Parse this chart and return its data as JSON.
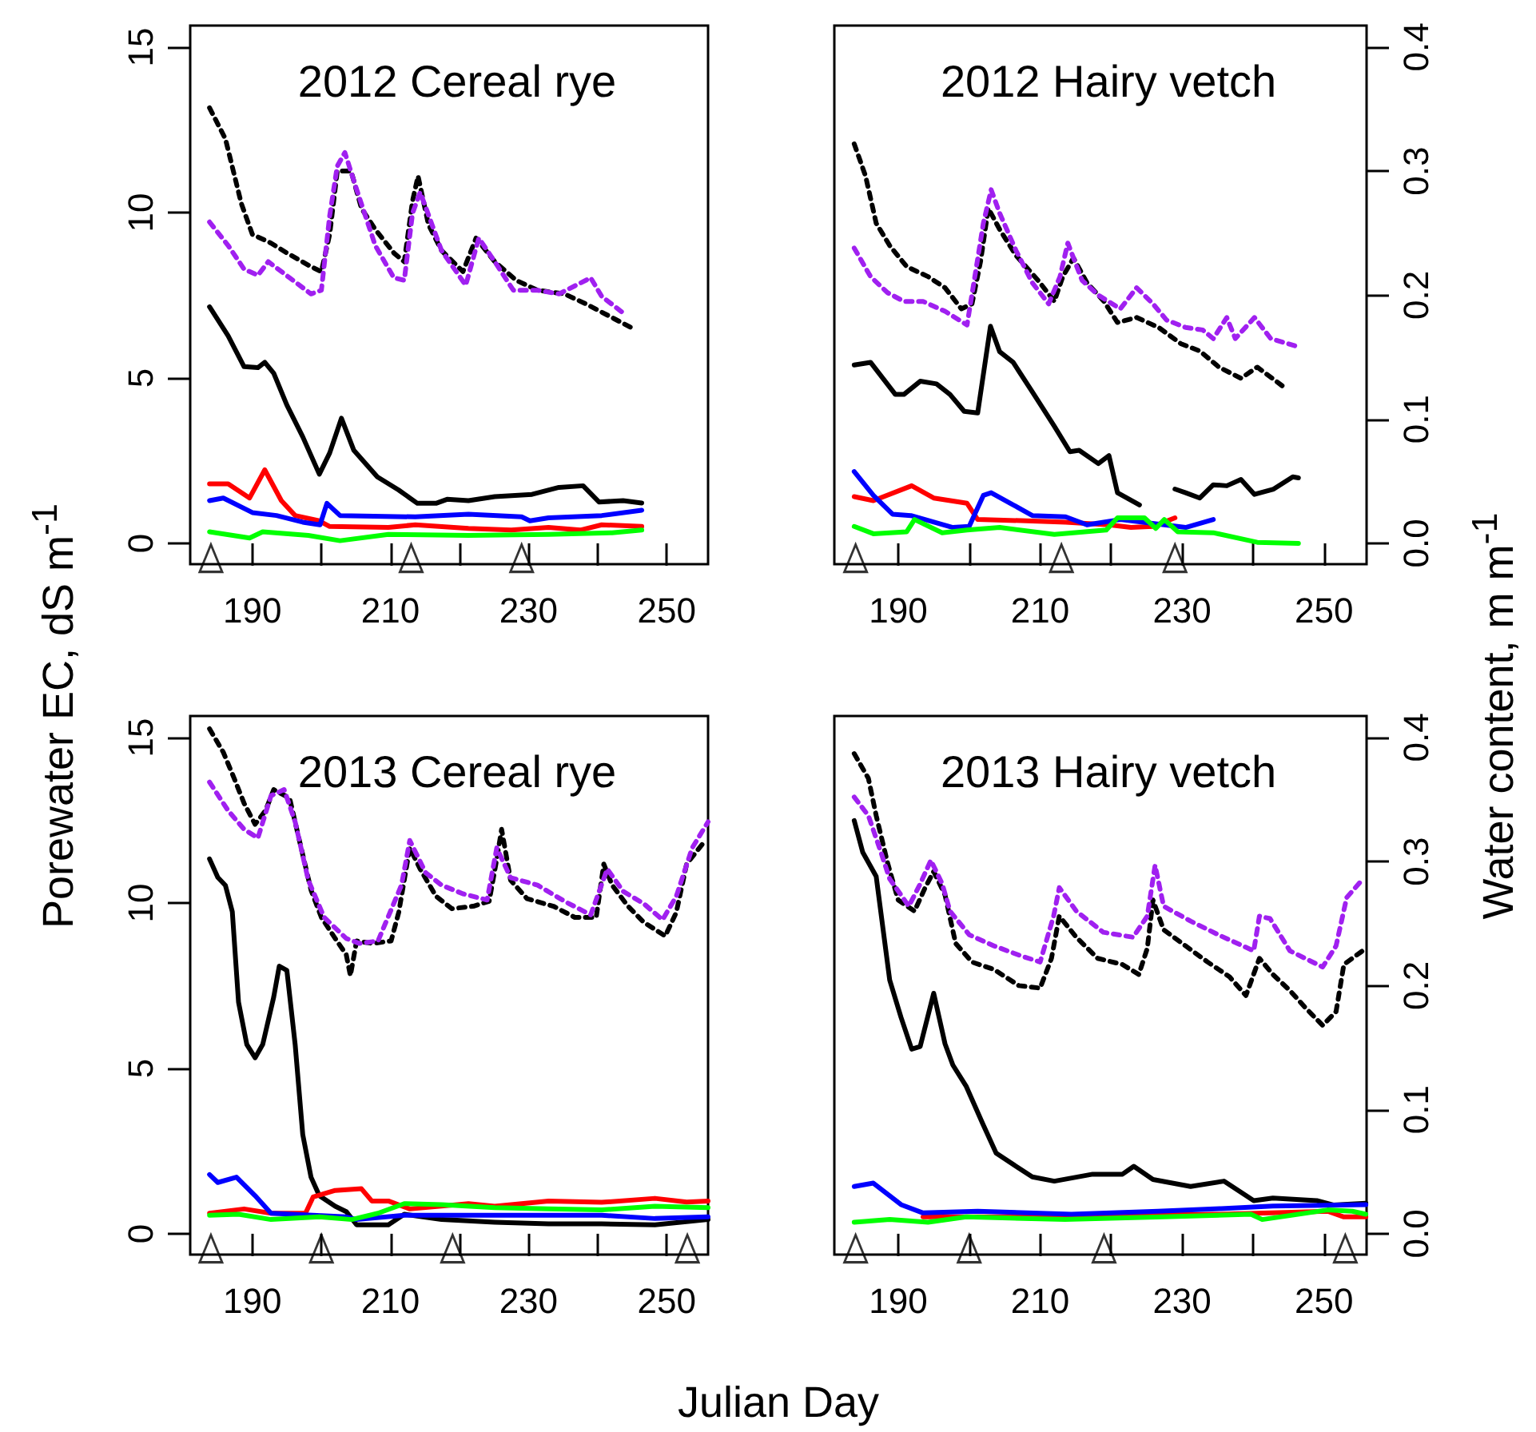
{
  "chart_data": [
    {
      "type": "line",
      "title": "2012 Cereal rye",
      "ylabel": "Porewater EC, dS m$^{-1}$",
      "xlim": [
        181,
        256
      ],
      "xticks": [
        190,
        {
          "value": 200,
          "label": null
        },
        210,
        {
          "value": 220,
          "label": null
        },
        230,
        {
          "value": 240,
          "label": null
        },
        250
      ],
      "ylim": [
        -0.63,
        15.65
      ],
      "yticks": [
        0,
        5,
        10,
        15
      ],
      "y2lim": [
        -0.0168,
        0.4173
      ],
      "tick_labels": [
        "x",
        "y"
      ],
      "series": [
        {
          "type": "line",
          "color": "#000000",
          "line_style": "solid",
          "x": [
            183.8,
            186.5,
            188.8,
            190.8,
            191.8,
            193.1,
            195.0,
            197.3,
            199.7,
            201.2,
            202.9,
            204.7,
            208.1,
            211.2,
            213.9,
            216.6,
            218.2,
            221.3,
            225.1,
            230.5,
            234.4,
            237.9,
            240.2,
            243.7,
            246.4
          ],
          "values": [
            7.15,
            6.27,
            5.34,
            5.31,
            5.47,
            5.14,
            4.18,
            3.22,
            2.09,
            2.73,
            3.78,
            2.81,
            2.01,
            1.61,
            1.21,
            1.21,
            1.33,
            1.29,
            1.41,
            1.48,
            1.69,
            1.74,
            1.25,
            1.29,
            1.22
          ]
        },
        {
          "type": "line",
          "color": "#ff0000",
          "line_style": "solid",
          "x": [
            183.8,
            186.5,
            189.6,
            191.8,
            194.2,
            196.2,
            199.7,
            201.2,
            209.7,
            213.6,
            221.3,
            227.5,
            232.9,
            237.5,
            240.6,
            246.4
          ],
          "values": [
            1.8,
            1.8,
            1.37,
            2.22,
            1.29,
            0.84,
            0.68,
            0.51,
            0.48,
            0.56,
            0.45,
            0.4,
            0.48,
            0.4,
            0.56,
            0.51
          ]
        },
        {
          "type": "line",
          "color": "#0000ff",
          "line_style": "solid",
          "x": [
            183.8,
            185.8,
            190.0,
            193.5,
            197.3,
            199.8,
            200.8,
            202.7,
            213.6,
            221.3,
            229.0,
            230.2,
            232.9,
            240.6,
            246.4
          ],
          "values": [
            1.29,
            1.37,
            0.93,
            0.84,
            0.64,
            0.56,
            1.21,
            0.84,
            0.8,
            0.88,
            0.8,
            0.68,
            0.77,
            0.84,
            1.0
          ]
        },
        {
          "type": "line",
          "color": "#00ff00",
          "line_style": "solid",
          "x": [
            183.8,
            189.6,
            191.5,
            198.1,
            202.7,
            209.7,
            221.3,
            232.9,
            242.1,
            246.4
          ],
          "values": [
            0.35,
            0.16,
            0.35,
            0.24,
            0.08,
            0.27,
            0.24,
            0.27,
            0.32,
            0.4
          ]
        },
        {
          "type": "line",
          "axis": "y2",
          "color": "#000000",
          "line_style": "dashed",
          "x": [
            183.8,
            186.1,
            188.4,
            190.0,
            192.7,
            195.0,
            198.5,
            200.0,
            201.2,
            202.3,
            204.3,
            205.8,
            207.8,
            210.5,
            212.0,
            213.2,
            214.0,
            215.5,
            217.4,
            220.5,
            222.4,
            225.1,
            228.2,
            231.3,
            235.2,
            238.3,
            241.4,
            244.8
          ],
          "values": [
            0.351,
            0.326,
            0.274,
            0.249,
            0.242,
            0.234,
            0.223,
            0.219,
            0.249,
            0.3,
            0.3,
            0.27,
            0.253,
            0.234,
            0.227,
            0.276,
            0.296,
            0.257,
            0.236,
            0.219,
            0.246,
            0.227,
            0.212,
            0.204,
            0.201,
            0.193,
            0.184,
            0.174
          ]
        },
        {
          "type": "line",
          "axis": "y2",
          "color": "#a020f0",
          "line_style": "dashed",
          "x": [
            183.8,
            186.5,
            188.8,
            190.8,
            192.3,
            195.4,
            198.5,
            200.0,
            201.2,
            202.3,
            203.4,
            205.0,
            207.8,
            210.5,
            212.0,
            213.2,
            214.3,
            217.4,
            220.9,
            222.8,
            225.1,
            227.8,
            231.3,
            234.4,
            239.0,
            240.6,
            244.1
          ],
          "values": [
            0.259,
            0.24,
            0.221,
            0.216,
            0.227,
            0.214,
            0.201,
            0.204,
            0.264,
            0.304,
            0.315,
            0.287,
            0.24,
            0.214,
            0.212,
            0.266,
            0.283,
            0.236,
            0.208,
            0.246,
            0.227,
            0.204,
            0.204,
            0.201,
            0.214,
            0.199,
            0.184
          ]
        },
        {
          "type": "scatter",
          "color": "#000000",
          "marker": "triangle",
          "x": [
            184,
            213,
            229
          ],
          "values": [
            -0.45,
            -0.45,
            -0.45
          ]
        }
      ]
    },
    {
      "type": "line",
      "title": "2012 Hairy vetch",
      "y2label": "Water content, m m$^{-1}$",
      "xlim": [
        181,
        256
      ],
      "xticks": [
        190,
        {
          "value": 200,
          "label": null
        },
        210,
        {
          "value": 220,
          "label": null
        },
        230,
        {
          "value": 240,
          "label": null
        },
        250
      ],
      "ylim": [
        -0.63,
        15.65
      ],
      "y2lim": [
        -0.0168,
        0.4173
      ],
      "y2ticks": [
        {
          "value": 0,
          "label": "0.0"
        },
        0.1,
        0.2,
        0.3,
        0.4
      ],
      "tick_labels": [
        "x",
        "y2"
      ],
      "series": [
        {
          "type": "line",
          "color": "#000000",
          "line_style": "solid",
          "x": [
            183.8,
            186.1,
            189.6,
            190.8,
            193.1,
            195.4,
            197.3,
            199.3,
            201.2,
            203.0,
            204.3,
            206.2,
            208.9,
            212.0,
            214.2,
            215.5,
            218.2,
            219.7,
            220.9,
            224.0,
            226.5,
            229.0,
            230.5,
            232.5,
            234.4,
            236.3,
            238.3,
            240.2,
            242.9,
            245.6,
            246.4
          ],
          "values": [
            5.39,
            5.47,
            4.5,
            4.5,
            4.9,
            4.82,
            4.5,
            3.99,
            3.94,
            6.56,
            5.79,
            5.47,
            4.58,
            3.54,
            2.77,
            2.81,
            2.41,
            2.65,
            1.53,
            1.16,
            null,
            1.64,
            1.53,
            1.37,
            1.77,
            1.74,
            1.93,
            1.48,
            1.64,
            2.01,
            1.98
          ]
        },
        {
          "type": "line",
          "color": "#ff0000",
          "line_style": "solid",
          "x": [
            183.8,
            186.5,
            191.9,
            195.0,
            199.7,
            201.2,
            208.1,
            213.6,
            219.7,
            222.8,
            225.9,
            229.0
          ],
          "values": [
            1.41,
            1.29,
            1.74,
            1.37,
            1.21,
            0.72,
            0.68,
            0.64,
            0.56,
            0.48,
            0.51,
            0.77
          ]
        },
        {
          "type": "line",
          "color": "#0000ff",
          "line_style": "solid",
          "x": [
            183.8,
            186.5,
            189.2,
            191.8,
            197.7,
            200.0,
            202.0,
            203.1,
            205.8,
            208.9,
            213.6,
            216.6,
            221.3,
            227.5,
            230.5,
            234.4
          ],
          "values": [
            2.17,
            1.45,
            0.88,
            0.84,
            0.48,
            0.51,
            1.45,
            1.53,
            1.21,
            0.84,
            0.8,
            0.56,
            0.72,
            0.56,
            0.48,
            0.72
          ]
        },
        {
          "type": "line",
          "color": "#00ff00",
          "line_style": "solid",
          "x": [
            183.8,
            186.5,
            191.2,
            192.3,
            196.2,
            199.7,
            204.3,
            212.0,
            219.3,
            220.9,
            224.7,
            226.3,
            227.5,
            229.4,
            234.4,
            240.6,
            246.4
          ],
          "values": [
            0.51,
            0.29,
            0.35,
            0.72,
            0.32,
            0.4,
            0.48,
            0.27,
            0.4,
            0.77,
            0.77,
            0.45,
            0.72,
            0.35,
            0.32,
            0.03,
            0.0
          ]
        },
        {
          "type": "line",
          "axis": "y2",
          "color": "#000000",
          "line_style": "dashed",
          "x": [
            183.8,
            185.4,
            186.9,
            188.8,
            191.2,
            194.2,
            196.6,
            198.9,
            200.4,
            201.6,
            202.7,
            204.3,
            206.6,
            209.7,
            212.0,
            213.2,
            214.7,
            216.6,
            219.0,
            220.9,
            223.6,
            226.7,
            229.8,
            232.5,
            235.2,
            238.3,
            240.6,
            244.1
          ],
          "values": [
            0.322,
            0.296,
            0.258,
            0.24,
            0.223,
            0.215,
            0.206,
            0.189,
            0.193,
            0.227,
            0.27,
            0.253,
            0.232,
            0.212,
            0.195,
            0.215,
            0.23,
            0.21,
            0.195,
            0.178,
            0.182,
            0.174,
            0.161,
            0.155,
            0.142,
            0.133,
            0.142,
            0.127
          ]
        },
        {
          "type": "line",
          "axis": "y2",
          "color": "#a020f0",
          "line_style": "dashed",
          "x": [
            183.8,
            186.1,
            188.5,
            190.8,
            193.5,
            196.6,
            199.7,
            200.8,
            202.0,
            203.1,
            204.3,
            206.6,
            208.9,
            211.2,
            212.8,
            213.9,
            215.9,
            218.2,
            221.3,
            223.6,
            225.9,
            227.8,
            230.5,
            232.9,
            234.4,
            236.3,
            237.5,
            240.2,
            242.5,
            246.0
          ],
          "values": [
            0.238,
            0.215,
            0.202,
            0.195,
            0.195,
            0.187,
            0.176,
            0.215,
            0.258,
            0.285,
            0.266,
            0.236,
            0.21,
            0.193,
            0.215,
            0.242,
            0.212,
            0.2,
            0.189,
            0.206,
            0.193,
            0.18,
            0.174,
            0.172,
            0.165,
            0.182,
            0.165,
            0.182,
            0.165,
            0.159
          ]
        },
        {
          "type": "scatter",
          "color": "#000000",
          "marker": "triangle",
          "x": [
            184,
            213,
            229
          ],
          "values": [
            -0.45,
            -0.45,
            -0.45
          ]
        }
      ]
    },
    {
      "type": "line",
      "title": "2013 Cereal rye",
      "xlabel": "Julian Day",
      "xlim": [
        181,
        256
      ],
      "xticks": [
        190,
        {
          "value": 200,
          "label": null
        },
        210,
        {
          "value": 220,
          "label": null
        },
        230,
        {
          "value": 240,
          "label": null
        },
        250
      ],
      "ylim": [
        -0.63,
        15.65
      ],
      "yticks": [
        0,
        5,
        10,
        15
      ],
      "y2lim": [
        -0.0168,
        0.4173
      ],
      "tick_labels": [
        "x",
        "y"
      ],
      "series": [
        {
          "type": "line",
          "color": "#000000",
          "line_style": "solid",
          "x": [
            183.8,
            185.0,
            186.1,
            187.1,
            188.0,
            189.2,
            190.4,
            191.5,
            193.1,
            193.9,
            195.0,
            196.2,
            197.3,
            198.5,
            199.7,
            202.0,
            203.6,
            205.1,
            209.7,
            212.0,
            217.4,
            225.1,
            232.9,
            240.6,
            248.3,
            256.0
          ],
          "values": [
            11.33,
            10.77,
            10.53,
            9.73,
            7.0,
            5.72,
            5.32,
            5.72,
            7.16,
            8.09,
            7.96,
            5.72,
            3.0,
            1.71,
            1.15,
            0.83,
            0.67,
            0.27,
            0.27,
            0.59,
            0.43,
            0.35,
            0.3,
            0.3,
            0.27,
            0.43
          ]
        },
        {
          "type": "line",
          "color": "#ff0000",
          "line_style": "solid",
          "x": [
            183.8,
            188.8,
            192.7,
            197.7,
            198.8,
            202.0,
            205.8,
            207.3,
            209.7,
            212.8,
            221.3,
            225.1,
            232.9,
            240.6,
            248.3,
            252.9,
            256.0
          ],
          "values": [
            0.62,
            0.75,
            0.62,
            0.62,
            1.11,
            1.31,
            1.36,
            0.99,
            0.99,
            0.75,
            0.91,
            0.83,
            0.99,
            0.95,
            1.07,
            0.96,
            0.99
          ]
        },
        {
          "type": "line",
          "color": "#0000ff",
          "line_style": "solid",
          "x": [
            183.8,
            185.0,
            187.7,
            190.4,
            192.7,
            203.6,
            205.1,
            212.0,
            225.1,
            240.6,
            248.3,
            256.0
          ],
          "values": [
            1.79,
            1.55,
            1.71,
            1.15,
            0.62,
            0.51,
            0.43,
            0.56,
            0.56,
            0.56,
            0.46,
            0.51
          ]
        },
        {
          "type": "line",
          "color": "#00ff00",
          "line_style": "solid",
          "x": [
            183.8,
            188.0,
            192.7,
            199.7,
            204.4,
            208.2,
            212.0,
            217.4,
            225.1,
            232.9,
            240.6,
            248.3,
            256.0
          ],
          "values": [
            0.56,
            0.59,
            0.43,
            0.51,
            0.43,
            0.62,
            0.91,
            0.88,
            0.79,
            0.75,
            0.72,
            0.83,
            0.79
          ]
        },
        {
          "type": "line",
          "axis": "y2",
          "color": "#000000",
          "line_style": "dashed",
          "x": [
            183.8,
            185.8,
            187.3,
            188.8,
            190.4,
            191.9,
            193.1,
            195.4,
            196.9,
            198.5,
            200.0,
            202.0,
            203.6,
            204.2,
            205.1,
            207.4,
            210.1,
            211.2,
            212.8,
            214.3,
            216.6,
            218.9,
            222.0,
            224.3,
            225.4,
            226.1,
            227.4,
            229.8,
            233.6,
            236.7,
            239.8,
            240.9,
            242.1,
            244.4,
            246.7,
            249.8,
            251.4,
            252.9,
            255.6
          ],
          "values": [
            0.407,
            0.388,
            0.368,
            0.347,
            0.33,
            0.341,
            0.358,
            0.351,
            0.315,
            0.277,
            0.255,
            0.238,
            0.225,
            0.208,
            0.236,
            0.234,
            0.236,
            0.259,
            0.311,
            0.294,
            0.272,
            0.262,
            0.264,
            0.268,
            0.302,
            0.326,
            0.285,
            0.27,
            0.264,
            0.255,
            0.255,
            0.298,
            0.281,
            0.264,
            0.251,
            0.24,
            0.259,
            0.298,
            0.317
          ]
        },
        {
          "type": "line",
          "axis": "y2",
          "color": "#a020f0",
          "line_style": "dashed",
          "x": [
            183.8,
            186.5,
            188.8,
            190.8,
            192.7,
            194.6,
            196.2,
            198.1,
            200.4,
            203.6,
            205.5,
            208.2,
            211.6,
            212.8,
            215.1,
            217.4,
            220.5,
            224.0,
            225.4,
            227.4,
            231.3,
            235.2,
            239.0,
            241.4,
            243.7,
            246.7,
            249.4,
            251.4,
            253.7,
            256.0
          ],
          "values": [
            0.364,
            0.341,
            0.326,
            0.319,
            0.353,
            0.358,
            0.332,
            0.285,
            0.255,
            0.238,
            0.234,
            0.236,
            0.281,
            0.317,
            0.291,
            0.281,
            0.274,
            0.269,
            0.311,
            0.287,
            0.281,
            0.268,
            0.257,
            0.294,
            0.276,
            0.266,
            0.253,
            0.272,
            0.311,
            0.332
          ]
        },
        {
          "type": "scatter",
          "color": "#000000",
          "marker": "triangle",
          "x": [
            184,
            200,
            219,
            253
          ],
          "values": [
            -0.45,
            -0.45,
            -0.45,
            -0.45
          ]
        }
      ]
    },
    {
      "type": "line",
      "title": "2013 Hairy vetch",
      "xlim": [
        181,
        256
      ],
      "xticks": [
        190,
        {
          "value": 200,
          "label": null
        },
        210,
        {
          "value": 220,
          "label": null
        },
        230,
        {
          "value": 240,
          "label": null
        },
        250
      ],
      "ylim": [
        -0.63,
        15.65
      ],
      "y2lim": [
        -0.0168,
        0.4173
      ],
      "y2ticks": [
        {
          "value": 0,
          "label": "0.0"
        },
        0.1,
        0.2,
        0.3,
        0.4
      ],
      "tick_labels": [
        "x",
        "y2"
      ],
      "series": [
        {
          "type": "line",
          "color": "#000000",
          "line_style": "solid",
          "x": [
            183.8,
            185.0,
            186.9,
            188.8,
            190.4,
            191.9,
            193.1,
            195.0,
            196.6,
            197.7,
            199.6,
            201.9,
            203.8,
            206.6,
            208.9,
            212.0,
            217.4,
            221.6,
            223.2,
            225.9,
            231.2,
            235.9,
            240.1,
            242.8,
            249.0,
            251.3,
            255.9
          ],
          "values": [
            12.49,
            11.53,
            10.8,
            7.67,
            6.54,
            5.58,
            5.66,
            7.27,
            5.74,
            5.1,
            4.45,
            3.33,
            2.44,
            2.04,
            1.72,
            1.59,
            1.8,
            1.8,
            2.04,
            1.64,
            1.43,
            1.59,
            1.0,
            1.08,
            1.0,
            0.87,
            0.92
          ]
        },
        {
          "type": "line",
          "color": "#ff0000",
          "line_style": "solid",
          "x": [
            193.5,
            205.0,
            219.7,
            235.5,
            250.5,
            252.8,
            255.9
          ],
          "values": [
            0.51,
            0.51,
            0.56,
            0.59,
            0.68,
            0.51,
            0.51
          ]
        },
        {
          "type": "line",
          "color": "#0000ff",
          "line_style": "solid",
          "x": [
            183.8,
            186.5,
            190.4,
            193.5,
            201.2,
            214.4,
            226.6,
            235.5,
            242.8,
            255.9
          ],
          "values": [
            1.43,
            1.53,
            0.88,
            0.63,
            0.68,
            0.59,
            0.68,
            0.76,
            0.84,
            0.88
          ]
        },
        {
          "type": "line",
          "color": "#00ff00",
          "line_style": "solid",
          "x": [
            183.8,
            188.8,
            194.2,
            199.6,
            213.5,
            227.4,
            239.7,
            241.3,
            250.5,
            254.0,
            255.9
          ],
          "values": [
            0.35,
            0.43,
            0.35,
            0.51,
            0.43,
            0.51,
            0.59,
            0.43,
            0.72,
            0.68,
            0.59
          ]
        },
        {
          "type": "line",
          "axis": "y2",
          "color": "#000000",
          "line_style": "dashed",
          "x": [
            183.8,
            185.8,
            186.9,
            188.5,
            190.0,
            192.3,
            193.8,
            195.0,
            196.6,
            198.1,
            200.4,
            203.5,
            207.0,
            210.0,
            211.6,
            212.7,
            215.1,
            218.1,
            221.6,
            223.9,
            225.1,
            225.9,
            227.4,
            230.5,
            233.6,
            236.7,
            239.0,
            240.9,
            242.8,
            245.2,
            247.4,
            249.8,
            251.7,
            252.8,
            255.9
          ],
          "values": [
            0.387,
            0.367,
            0.337,
            0.299,
            0.269,
            0.26,
            0.279,
            0.292,
            0.273,
            0.234,
            0.219,
            0.213,
            0.2,
            0.198,
            0.222,
            0.256,
            0.239,
            0.222,
            0.217,
            0.209,
            0.23,
            0.269,
            0.245,
            0.232,
            0.219,
            0.207,
            0.192,
            0.222,
            0.209,
            0.196,
            0.182,
            0.168,
            0.179,
            0.217,
            0.23
          ]
        },
        {
          "type": "line",
          "axis": "y2",
          "color": "#a020f0",
          "line_style": "dashed",
          "x": [
            183.8,
            185.8,
            187.3,
            188.8,
            191.5,
            193.1,
            194.6,
            196.2,
            197.3,
            200.0,
            203.5,
            207.3,
            210.0,
            211.9,
            212.7,
            215.1,
            218.9,
            223.1,
            225.1,
            226.2,
            227.4,
            231.2,
            235.1,
            240.1,
            240.9,
            242.4,
            245.2,
            249.8,
            251.7,
            253.2,
            255.5
          ],
          "values": [
            0.352,
            0.337,
            0.312,
            0.286,
            0.264,
            0.282,
            0.301,
            0.282,
            0.26,
            0.241,
            0.232,
            0.224,
            0.219,
            0.256,
            0.279,
            0.26,
            0.243,
            0.239,
            0.256,
            0.297,
            0.264,
            0.252,
            0.241,
            0.228,
            0.256,
            0.254,
            0.228,
            0.215,
            0.232,
            0.271,
            0.286
          ]
        },
        {
          "type": "scatter",
          "color": "#000000",
          "marker": "triangle",
          "x": [
            184,
            200,
            219,
            253
          ],
          "values": [
            -0.45,
            -0.45,
            -0.45,
            -0.45
          ]
        }
      ]
    }
  ]
}
